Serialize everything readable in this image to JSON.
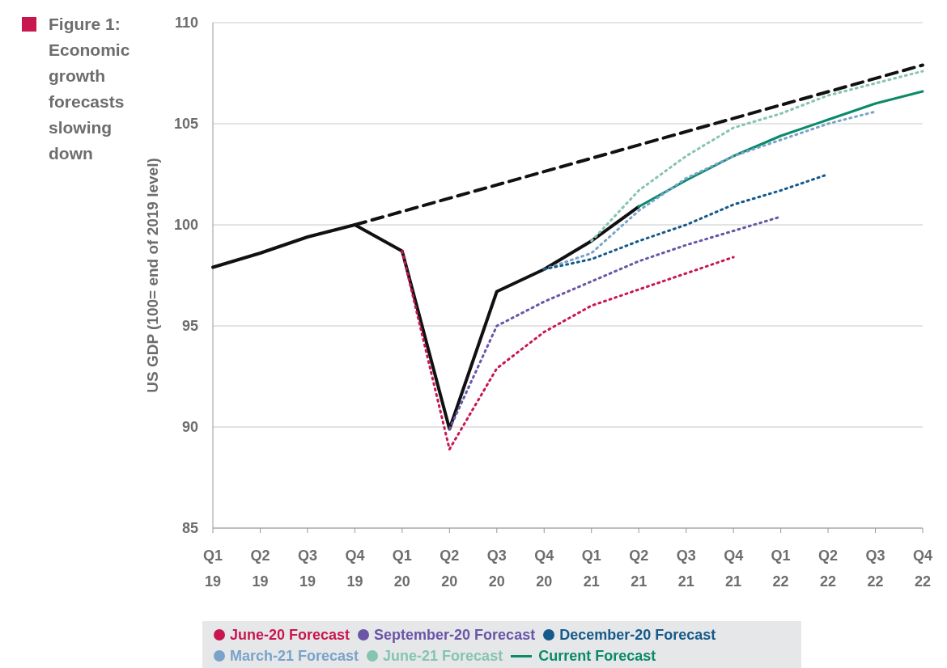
{
  "chart_data": {
    "type": "line",
    "title": "Figure 1: Economic growth forecasts slowing down",
    "ylabel": "US GDP (100= end of 2019 level)",
    "categories": [
      "Q1 19",
      "Q2 19",
      "Q3 19",
      "Q4 19",
      "Q1 20",
      "Q2 20",
      "Q3 20",
      "Q4 20",
      "Q1 21",
      "Q2 21",
      "Q3 21",
      "Q4 21",
      "Q1 22",
      "Q2 22",
      "Q3 22",
      "Q4 22"
    ],
    "ylim": [
      85,
      110
    ],
    "yticks": [
      85,
      90,
      95,
      100,
      105,
      110
    ],
    "grid": "y",
    "legend": "bottom",
    "marker": "none",
    "series": [
      {
        "name": "June-20 Forecast",
        "color": "#c8174f",
        "line_style": "dotted",
        "values": [
          null,
          null,
          null,
          null,
          98.7,
          88.9,
          92.9,
          94.7,
          96.0,
          96.8,
          97.6,
          98.4,
          null,
          null,
          null,
          null
        ]
      },
      {
        "name": "September-20 Forecast",
        "color": "#6b55a8",
        "line_style": "dotted",
        "values": [
          null,
          null,
          null,
          null,
          null,
          89.9,
          95.0,
          96.2,
          97.2,
          98.2,
          99.0,
          99.7,
          100.4,
          null,
          null,
          null
        ]
      },
      {
        "name": "December-20 Forecast",
        "color": "#155a8a",
        "line_style": "dotted",
        "values": [
          null,
          null,
          null,
          null,
          null,
          null,
          null,
          97.8,
          98.3,
          99.2,
          100.0,
          101.0,
          101.7,
          102.5,
          null,
          null
        ]
      },
      {
        "name": "March-21 Forecast",
        "color": "#7aa3c9",
        "line_style": "dotted",
        "values": [
          null,
          null,
          null,
          null,
          null,
          null,
          null,
          97.8,
          98.6,
          100.7,
          102.3,
          103.4,
          104.2,
          105.0,
          105.6,
          null
        ]
      },
      {
        "name": "June-21 Forecast",
        "color": "#85c4b0",
        "line_style": "dotted",
        "values": [
          null,
          null,
          null,
          null,
          null,
          null,
          null,
          null,
          99.2,
          101.7,
          103.4,
          104.8,
          105.5,
          106.4,
          107.0,
          107.6
        ]
      },
      {
        "name": "Current Forecast",
        "color": "#0a8a68",
        "line_style": "solid",
        "values": [
          null,
          null,
          null,
          null,
          null,
          null,
          null,
          null,
          null,
          100.9,
          102.2,
          103.4,
          104.4,
          105.2,
          106.0,
          106.6
        ]
      },
      {
        "color": "#111111",
        "line_style": "dashed",
        "values": [
          null,
          null,
          null,
          100.0,
          null,
          null,
          null,
          null,
          null,
          null,
          null,
          null,
          null,
          null,
          null,
          107.9
        ]
      },
      {
        "color": "#111111",
        "line_style": "solid",
        "values": [
          97.9,
          98.6,
          99.4,
          100.0,
          98.7,
          89.9,
          96.7,
          97.8,
          99.2,
          100.9,
          null,
          null,
          null,
          null,
          null,
          null
        ]
      }
    ]
  }
}
